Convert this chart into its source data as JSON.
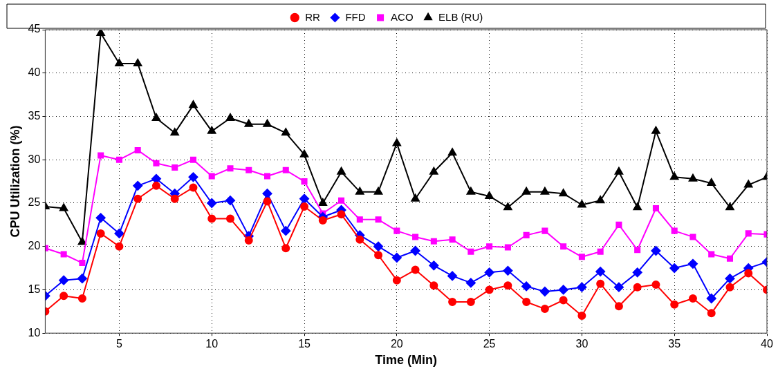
{
  "chart_data": {
    "type": "line",
    "xlabel": "Time (Min)",
    "ylabel": "CPU Utilization (%)",
    "x": [
      1,
      2,
      3,
      4,
      5,
      6,
      7,
      8,
      9,
      10,
      11,
      12,
      13,
      14,
      15,
      16,
      17,
      18,
      19,
      20,
      21,
      22,
      23,
      24,
      25,
      26,
      27,
      28,
      29,
      30,
      31,
      32,
      33,
      34,
      35,
      36,
      37,
      38,
      39,
      40
    ],
    "xlim": [
      1,
      40
    ],
    "xticks": [
      5,
      10,
      15,
      20,
      25,
      30,
      35,
      40
    ],
    "ylim": [
      10,
      45
    ],
    "yticks": [
      10,
      15,
      20,
      25,
      30,
      35,
      40,
      45
    ],
    "grid": true,
    "legend": "top",
    "line_style": "solid",
    "series": [
      {
        "name": "RR",
        "color": "#ff0000",
        "marker": "circle",
        "values": [
          12.5,
          14.3,
          14.0,
          21.5,
          20.0,
          25.5,
          27.0,
          25.5,
          26.8,
          23.2,
          23.2,
          20.7,
          25.2,
          19.8,
          24.6,
          23.0,
          23.7,
          20.8,
          19.0,
          16.1,
          17.3,
          15.5,
          13.6,
          13.6,
          15.0,
          15.5,
          13.6,
          12.8,
          13.8,
          12.0,
          15.7,
          13.1,
          15.3,
          15.6,
          13.3,
          14.0,
          12.3,
          15.3,
          16.9,
          15.0
        ]
      },
      {
        "name": "FFD",
        "color": "#0000ff",
        "marker": "diamond",
        "values": [
          14.3,
          16.1,
          16.3,
          23.3,
          21.5,
          27.0,
          27.8,
          26.1,
          28.0,
          25.0,
          25.3,
          21.2,
          26.1,
          21.8,
          25.5,
          23.4,
          24.2,
          21.3,
          20.0,
          18.7,
          19.5,
          17.8,
          16.6,
          15.8,
          17.0,
          17.2,
          15.4,
          14.8,
          15.0,
          15.3,
          17.1,
          15.3,
          17.0,
          19.5,
          17.5,
          18.0,
          14.0,
          16.3,
          17.5,
          18.2
        ]
      },
      {
        "name": "ACO",
        "color": "#ff00ff",
        "marker": "square",
        "values": [
          19.8,
          19.1,
          18.1,
          30.5,
          30.0,
          31.1,
          29.6,
          29.1,
          30.0,
          28.1,
          29.0,
          28.8,
          28.1,
          28.8,
          27.5,
          23.8,
          25.3,
          23.1,
          23.1,
          21.8,
          21.1,
          20.6,
          20.8,
          19.4,
          20.0,
          19.9,
          21.3,
          21.8,
          20.0,
          18.8,
          19.4,
          22.5,
          19.6,
          24.4,
          21.8,
          21.1,
          19.1,
          18.6,
          21.5,
          21.4
        ]
      },
      {
        "name": "ELB (RU)",
        "color": "#000000",
        "marker": "triangle",
        "values": [
          24.6,
          24.4,
          20.5,
          44.6,
          41.1,
          41.1,
          34.8,
          33.1,
          36.3,
          33.3,
          34.8,
          34.1,
          34.1,
          33.1,
          30.6,
          25.0,
          28.6,
          26.3,
          26.3,
          31.9,
          25.5,
          28.6,
          30.8,
          26.3,
          25.8,
          24.5,
          26.3,
          26.3,
          26.1,
          24.8,
          25.3,
          28.6,
          24.5,
          33.3,
          28.0,
          27.8,
          27.3,
          24.5,
          27.1,
          28.0
        ]
      }
    ]
  }
}
